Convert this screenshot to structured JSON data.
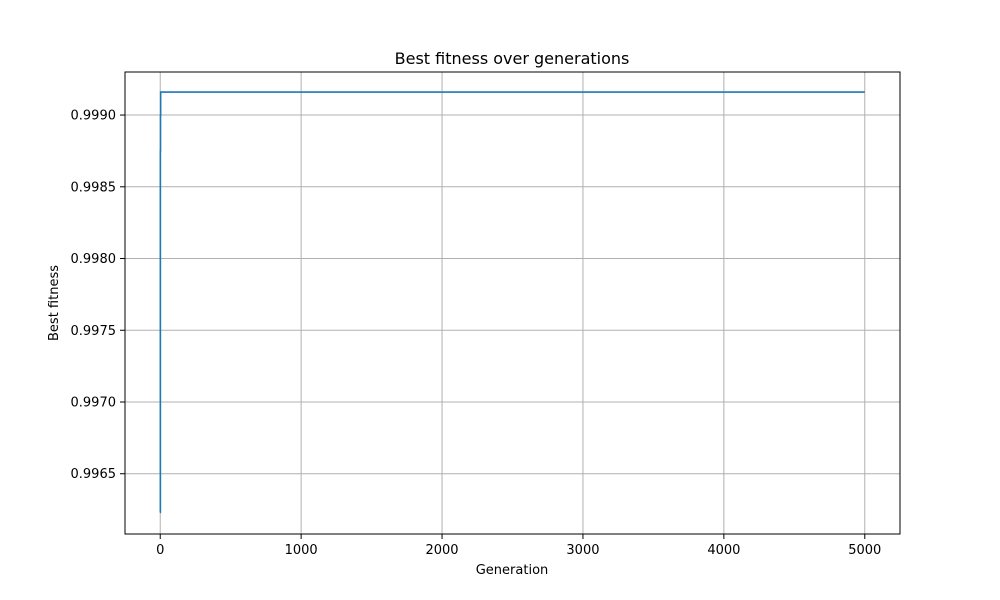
{
  "chart_data": {
    "type": "line",
    "title": "Best fitness over generations",
    "xlabel": "Generation",
    "ylabel": "Best fitness",
    "xlim": [
      -250,
      5250
    ],
    "ylim": [
      0.99608,
      0.9993
    ],
    "xticks": [
      0,
      1000,
      2000,
      3000,
      4000,
      5000
    ],
    "xtick_labels": [
      "0",
      "1000",
      "2000",
      "3000",
      "4000",
      "5000"
    ],
    "yticks": [
      0.9965,
      0.997,
      0.9975,
      0.998,
      0.9985,
      0.999
    ],
    "ytick_labels": [
      "0.9965",
      "0.9970",
      "0.9975",
      "0.9980",
      "0.9985",
      "0.9990"
    ],
    "grid": true,
    "series": [
      {
        "color": "#1f77b4",
        "x": [
          0,
          1,
          1,
          2,
          2,
          3,
          3,
          5000
        ],
        "y": [
          0.99623,
          0.99623,
          0.99875,
          0.99875,
          0.999,
          0.999,
          0.99916,
          0.99916
        ]
      }
    ]
  }
}
